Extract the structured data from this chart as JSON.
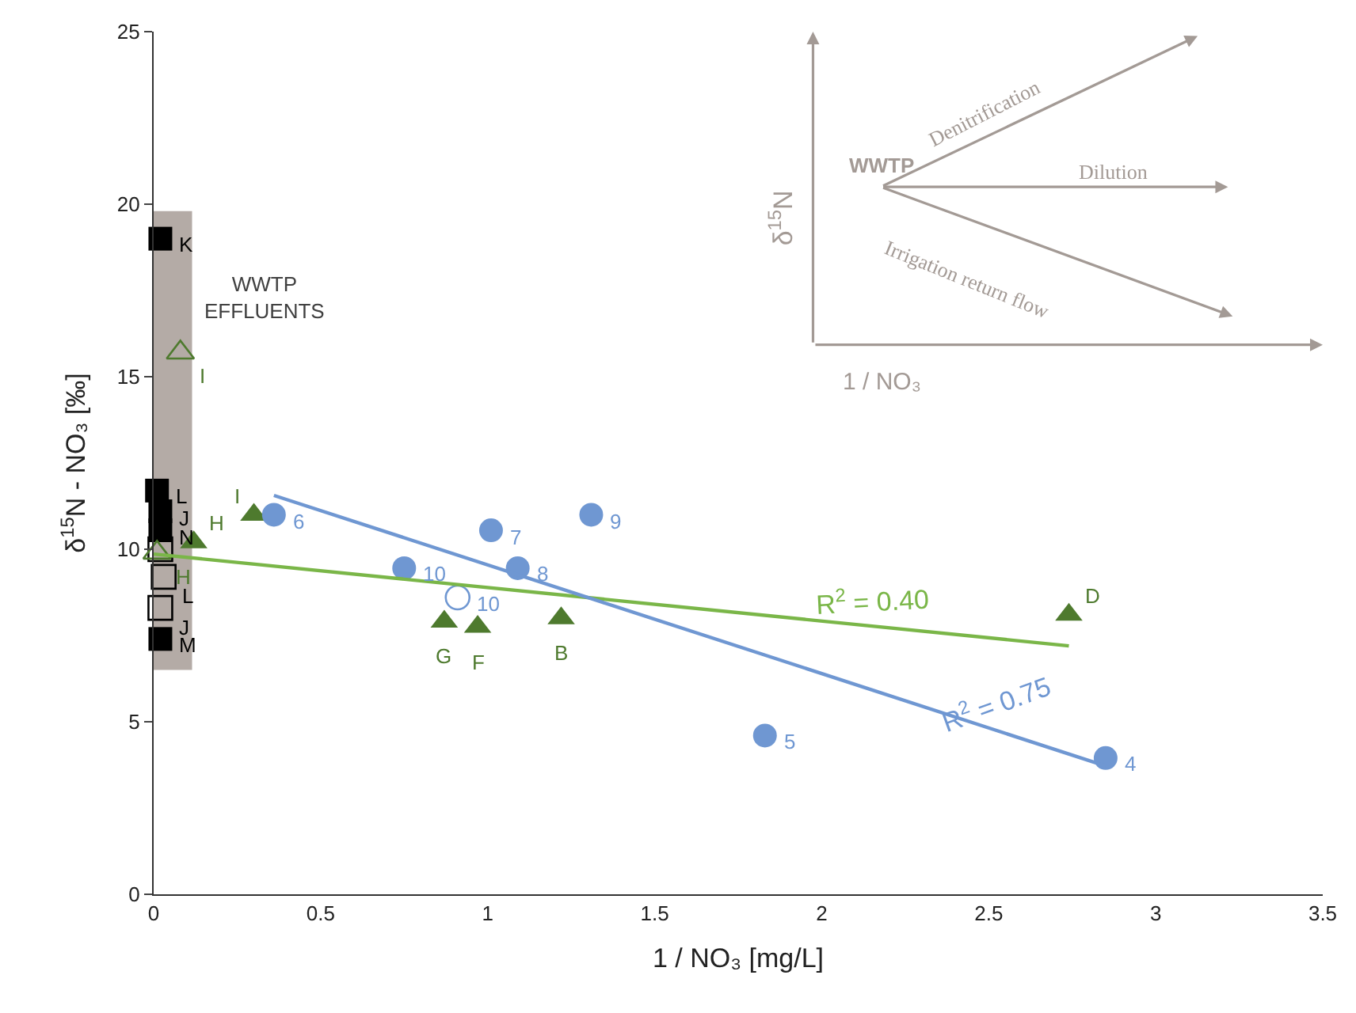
{
  "chart_data": {
    "type": "scatter",
    "xlabel": "1 / NO₃ [mg/L]",
    "ylabel": "δ$^{15}$N - NO₃ [‰]",
    "xlim": [
      0,
      3.5
    ],
    "xticks": [
      0,
      0.5,
      1,
      1.5,
      2,
      2.5,
      3,
      3.5
    ],
    "ylim": [
      0,
      25
    ],
    "yticks": [
      0,
      5,
      10,
      15,
      20,
      25
    ],
    "series": [
      {
        "type": "bar",
        "color": "#b4aba6",
        "x": [
          0.04
        ],
        "base": [
          6.5
        ],
        "values": [
          13.3
        ]
      },
      {
        "marker": "square",
        "color": "#000000",
        "x": [
          0.02,
          0.01,
          0.02,
          0.02,
          0.02
        ],
        "values": [
          19.0,
          11.7,
          11.1,
          10.55,
          7.4
        ]
      },
      {
        "marker": "square-open",
        "color": "#000000",
        "x": [
          0.02,
          0.03,
          0.02
        ],
        "values": [
          10.0,
          9.2,
          8.3
        ]
      },
      {
        "marker": "triangle-open",
        "color": "#4e7a2e",
        "x": [
          0.08,
          0.01
        ],
        "values": [
          15.7,
          9.9
        ]
      },
      {
        "marker": "triangle",
        "color": "#4e7a2e",
        "x": [
          0.3,
          0.12,
          0.87,
          0.97,
          1.22,
          2.74
        ],
        "values": [
          11.0,
          10.2,
          7.9,
          7.75,
          8.0,
          8.1
        ]
      },
      {
        "marker": "circle",
        "color": "#6f97d2",
        "x": [
          0.36,
          0.75,
          1.01,
          1.09,
          1.31,
          1.83,
          2.85
        ],
        "values": [
          11.0,
          9.45,
          10.55,
          9.45,
          11.0,
          4.6,
          3.95
        ]
      },
      {
        "marker": "circle-open",
        "color": "#6f97d2",
        "x": [
          0.91
        ],
        "values": [
          8.6
        ]
      },
      {
        "type": "line",
        "color": "#7ab648",
        "x": [
          0.0,
          2.74
        ],
        "values": [
          9.86,
          7.2
        ]
      },
      {
        "type": "line",
        "color": "#6f97d2",
        "x": [
          0.36,
          2.85
        ],
        "values": [
          11.56,
          3.72
        ]
      }
    ],
    "annotations": [
      {
        "text": "K",
        "x": 0.02,
        "y": 19.0
      },
      {
        "text": "L",
        "x": 0.01,
        "y": 11.7
      },
      {
        "text": "J",
        "x": 0.02,
        "y": 11.1
      },
      {
        "text": "N",
        "x": 0.02,
        "y": 10.55
      },
      {
        "text": "M",
        "x": 0.02,
        "y": 7.4
      },
      {
        "text": "L",
        "x": 0.03,
        "y": 9.2
      },
      {
        "text": "J",
        "x": 0.02,
        "y": 8.3
      },
      {
        "text": "I",
        "x": 0.08,
        "y": 15.7
      },
      {
        "text": "H",
        "x": 0.01,
        "y": 9.9
      },
      {
        "text": "I",
        "x": 0.3,
        "y": 11.0
      },
      {
        "text": "H",
        "x": 0.12,
        "y": 10.2
      },
      {
        "text": "G",
        "x": 0.87,
        "y": 7.9
      },
      {
        "text": "F",
        "x": 0.97,
        "y": 7.75
      },
      {
        "text": "B",
        "x": 1.22,
        "y": 8.0
      },
      {
        "text": "D",
        "x": 2.74,
        "y": 8.1
      },
      {
        "text": "6",
        "x": 0.36,
        "y": 11.0
      },
      {
        "text": "10",
        "x": 0.75,
        "y": 9.45
      },
      {
        "text": "7",
        "x": 1.01,
        "y": 10.55
      },
      {
        "text": "8",
        "x": 1.09,
        "y": 9.45
      },
      {
        "text": "9",
        "x": 1.31,
        "y": 11.0
      },
      {
        "text": "5",
        "x": 1.83,
        "y": 4.6
      },
      {
        "text": "4",
        "x": 2.85,
        "y": 3.95
      },
      {
        "text": "10",
        "x": 0.91,
        "y": 8.6
      },
      {
        "text": "R$^{2}$ = 0.40",
        "x": 2.15,
        "y": 7.77
      },
      {
        "text": "R$^{2}$ = 0.75",
        "x": 2.52,
        "y": 4.76
      },
      {
        "text": "WWTP EFFLUENTS",
        "x": 0.14,
        "y": 17.3
      },
      "WWTP",
      "Denitrification",
      "Dilution",
      "Irrigation return flow",
      "δ$^{15}$N",
      "1 / NO₃"
    ]
  }
}
